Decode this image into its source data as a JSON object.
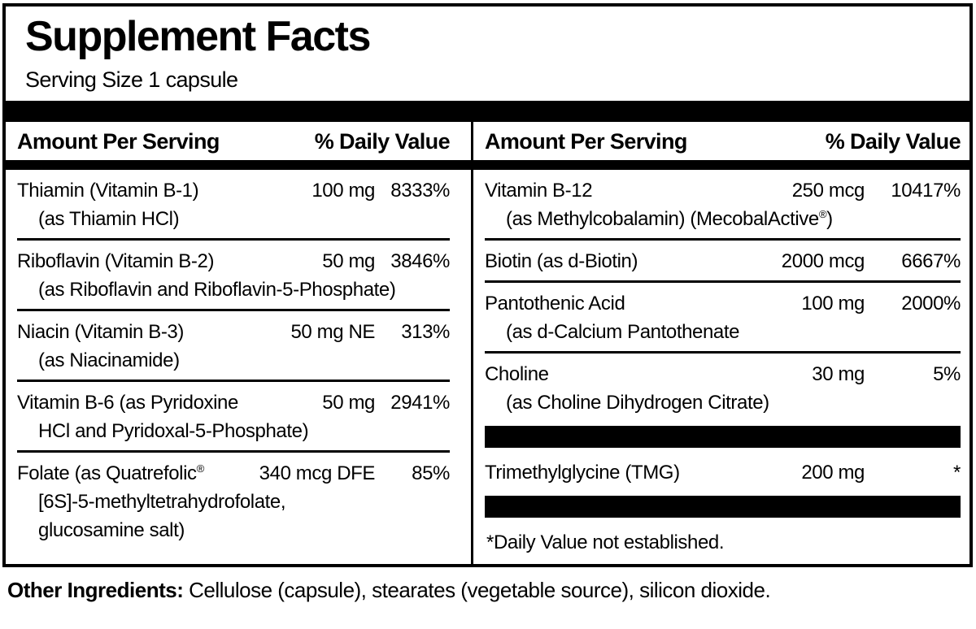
{
  "colors": {
    "ink": "#000000",
    "paper": "#ffffff"
  },
  "label": {
    "title": "Supplement Facts",
    "serving_size": "Serving Size 1 capsule",
    "columns": [
      {
        "header": {
          "amount": "Amount Per Serving",
          "dv": "% Daily Value"
        },
        "rows": [
          {
            "type": "nutrient",
            "name": "Thiamin (Vitamin B-1)",
            "amount": "100 mg",
            "dv": "8333%",
            "sub": [
              "(as Thiamin HCl)"
            ]
          },
          {
            "type": "nutrient",
            "name": "Riboflavin (Vitamin B-2)",
            "amount": "50 mg",
            "dv": "3846%",
            "sub": [
              "(as Riboflavin and Riboflavin-5-Phosphate)"
            ]
          },
          {
            "type": "nutrient",
            "name": "Niacin (Vitamin B-3)",
            "amount": "50 mg NE",
            "dv": "313%",
            "sub": [
              "(as Niacinamide)"
            ]
          },
          {
            "type": "nutrient",
            "name": "Vitamin B-6 (as Pyridoxine",
            "amount": "50 mg",
            "dv": "2941%",
            "sub": [
              "HCl and Pyridoxal-5-Phosphate)"
            ]
          },
          {
            "type": "nutrient",
            "name": "Folate (as Quatrefolic®",
            "amount": "340 mcg DFE",
            "dv": "85%",
            "sub": [
              "[6S]-5-methyltetrahydrofolate,",
              "glucosamine salt)"
            ]
          }
        ]
      },
      {
        "header": {
          "amount": "Amount Per Serving",
          "dv": "% Daily Value"
        },
        "rows": [
          {
            "type": "nutrient",
            "name": "Vitamin B-12",
            "amount": "250 mcg",
            "dv": "10417%",
            "sub": [
              "(as Methylcobalamin) (MecobalActive®)"
            ]
          },
          {
            "type": "nutrient",
            "name": "Biotin (as d-Biotin)",
            "amount": "2000 mcg",
            "dv": "6667%",
            "sub": []
          },
          {
            "type": "nutrient",
            "name": "Pantothenic Acid",
            "amount": "100 mg",
            "dv": "2000%",
            "sub": [
              "(as d-Calcium Pantothenate"
            ]
          },
          {
            "type": "nutrient",
            "name": "Choline",
            "amount": "30 mg",
            "dv": "5%",
            "sub": [
              "(as Choline Dihydrogen Citrate)"
            ]
          },
          {
            "type": "bar"
          },
          {
            "type": "nutrient",
            "name": "Trimethylglycine (TMG)",
            "amount": "200 mg",
            "dv": "*",
            "sub": []
          },
          {
            "type": "bar"
          },
          {
            "type": "footnote",
            "text": "*Daily Value not established."
          }
        ]
      }
    ],
    "other_ingredients": {
      "label": "Other Ingredients:",
      "text": " Cellulose (capsule), stearates (vegetable source), silicon dioxide."
    }
  }
}
